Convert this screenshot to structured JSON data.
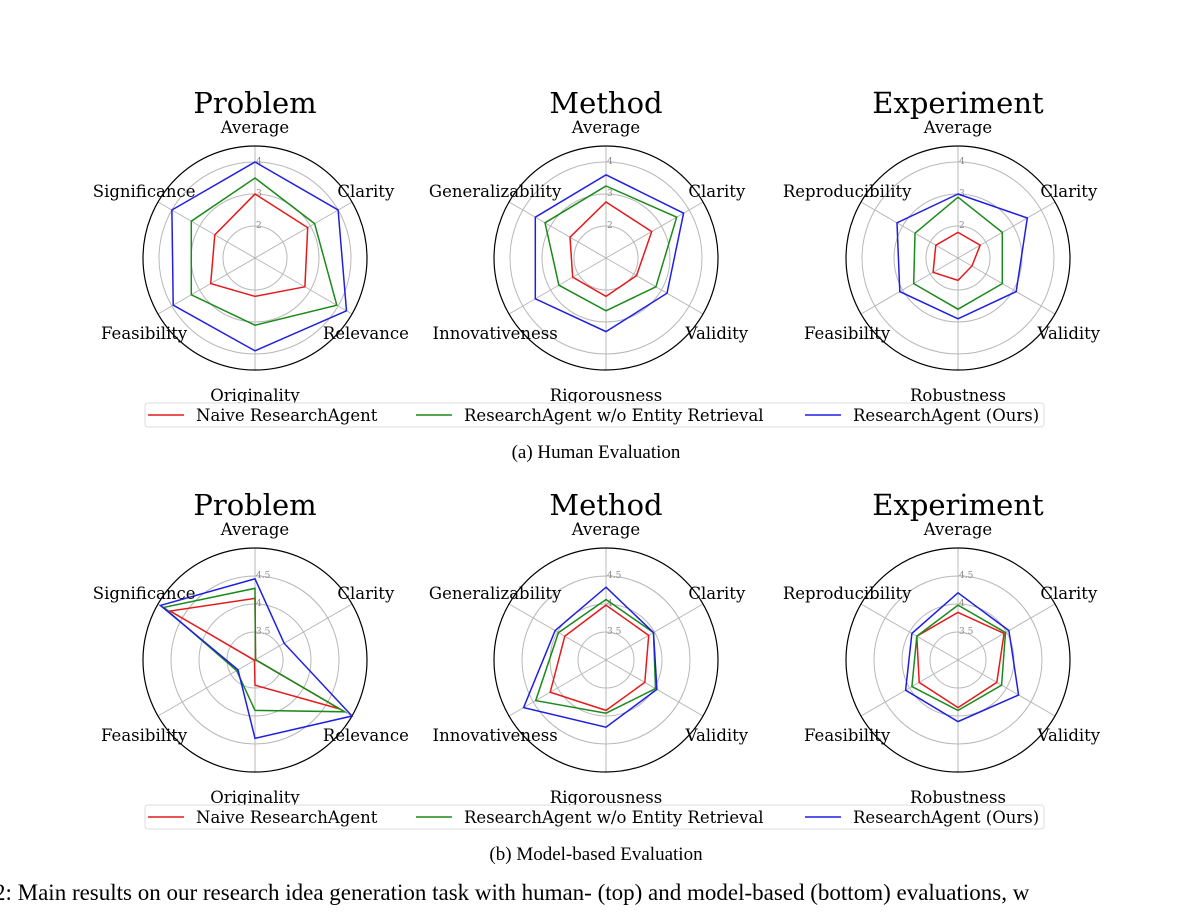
{
  "figure": {
    "subcaption_a": "(a) Human Evaluation",
    "subcaption_b": "(b) Model-based Evaluation",
    "caption_line1": "2: Main results on our research idea generation task with human- (top) and model-based (bottom) evaluations, w",
    "caption_line2": ""
  },
  "legend": [
    "Naive ResearchAgent",
    "ResearchAgent w/o Entity Retrieval",
    "ResearchAgent (Ours)"
  ],
  "colors": {
    "naive": "#e41a1c",
    "wo_entity": "#1b8a1b",
    "ours": "#1f1fe0",
    "grid": "#b8b8b8",
    "tick": "#8a8a8a"
  },
  "chart_data": [
    {
      "type": "radar",
      "group": "Human Evaluation",
      "title": "Problem",
      "axes": [
        "Average",
        "Clarity",
        "Relevance",
        "Originality",
        "Feasibility",
        "Significance"
      ],
      "rlim": [
        1,
        4.5
      ],
      "rticks": [
        2,
        3,
        4
      ],
      "series": [
        {
          "name": "Naive ResearchAgent",
          "values": [
            3.0,
            2.9,
            2.8,
            2.2,
            2.6,
            2.45
          ]
        },
        {
          "name": "ResearchAgent w/o Entity Retrieval",
          "values": [
            3.5,
            3.15,
            3.95,
            3.1,
            3.3,
            3.3
          ]
        },
        {
          "name": "ResearchAgent (Ours)",
          "values": [
            4.0,
            4.0,
            4.3,
            3.9,
            3.95,
            4.0
          ]
        }
      ]
    },
    {
      "type": "radar",
      "group": "Human Evaluation",
      "title": "Method",
      "axes": [
        "Average",
        "Clarity",
        "Validity",
        "Rigorousness",
        "Innovativeness",
        "Generalizability"
      ],
      "rlim": [
        1,
        4.5
      ],
      "rticks": [
        2,
        3,
        4
      ],
      "series": [
        {
          "name": "Naive ResearchAgent",
          "values": [
            2.75,
            2.65,
            2.1,
            2.2,
            2.2,
            2.3
          ]
        },
        {
          "name": "ResearchAgent w/o Entity Retrieval",
          "values": [
            3.25,
            3.55,
            2.8,
            2.65,
            2.7,
            3.2
          ]
        },
        {
          "name": "ResearchAgent (Ours)",
          "values": [
            3.6,
            3.8,
            3.2,
            3.3,
            3.55,
            3.55
          ]
        }
      ]
    },
    {
      "type": "radar",
      "group": "Human Evaluation",
      "title": "Experiment",
      "axes": [
        "Average",
        "Clarity",
        "Validity",
        "Robustness",
        "Feasibility",
        "Reproducibility"
      ],
      "rlim": [
        1,
        4.5
      ],
      "rticks": [
        2,
        3,
        4
      ],
      "series": [
        {
          "name": "Naive ResearchAgent",
          "values": [
            1.8,
            1.8,
            1.5,
            1.7,
            1.9,
            1.8
          ]
        },
        {
          "name": "ResearchAgent w/o Entity Retrieval",
          "values": [
            2.9,
            2.6,
            2.6,
            2.6,
            2.6,
            2.55
          ]
        },
        {
          "name": "ResearchAgent (Ours)",
          "values": [
            3.0,
            3.5,
            3.1,
            2.9,
            3.1,
            3.2
          ]
        }
      ]
    },
    {
      "type": "radar",
      "group": "Model-based Evaluation",
      "title": "Problem",
      "axes": [
        "Average",
        "Clarity",
        "Relevance",
        "Originality",
        "Feasibility",
        "Significance"
      ],
      "rlim": [
        3,
        5
      ],
      "rticks": [
        3.5,
        4,
        4.5
      ],
      "series": [
        {
          "name": "Naive ResearchAgent",
          "values": [
            4.1,
            3.01,
            4.75,
            3.45,
            3.01,
            4.75
          ]
        },
        {
          "name": "ResearchAgent w/o Entity Retrieval",
          "values": [
            4.28,
            3.01,
            4.85,
            3.9,
            3.38,
            4.88
          ]
        },
        {
          "name": "ResearchAgent (Ours)",
          "values": [
            4.45,
            3.6,
            5.0,
            4.4,
            3.35,
            4.95
          ]
        }
      ]
    },
    {
      "type": "radar",
      "group": "Model-based Evaluation",
      "title": "Method",
      "axes": [
        "Average",
        "Clarity",
        "Validity",
        "Rigorousness",
        "Innovativeness",
        "Generalizability"
      ],
      "rlim": [
        3,
        5
      ],
      "rticks": [
        3.5,
        4,
        4.5
      ],
      "series": [
        {
          "name": "Naive ResearchAgent",
          "values": [
            3.98,
            3.88,
            3.8,
            3.9,
            4.15,
            3.85
          ]
        },
        {
          "name": "ResearchAgent w/o Entity Retrieval",
          "values": [
            4.08,
            3.98,
            4.02,
            3.95,
            4.45,
            3.98
          ]
        },
        {
          "name": "ResearchAgent (Ours)",
          "values": [
            4.3,
            3.98,
            4.05,
            4.2,
            4.7,
            4.05
          ]
        }
      ]
    },
    {
      "type": "radar",
      "group": "Model-based Evaluation",
      "title": "Experiment",
      "axes": [
        "Average",
        "Clarity",
        "Validity",
        "Robustness",
        "Feasibility",
        "Reproducibility"
      ],
      "rlim": [
        3,
        5
      ],
      "rticks": [
        3.5,
        4,
        4.5
      ],
      "series": [
        {
          "name": "Naive ResearchAgent",
          "values": [
            3.85,
            3.95,
            3.8,
            3.85,
            3.8,
            3.85
          ]
        },
        {
          "name": "ResearchAgent w/o Entity Retrieval",
          "values": [
            3.98,
            3.98,
            3.9,
            3.9,
            3.95,
            3.85
          ]
        },
        {
          "name": "ResearchAgent (Ours)",
          "values": [
            4.2,
            4.05,
            4.25,
            4.1,
            4.08,
            3.95
          ]
        }
      ]
    }
  ]
}
